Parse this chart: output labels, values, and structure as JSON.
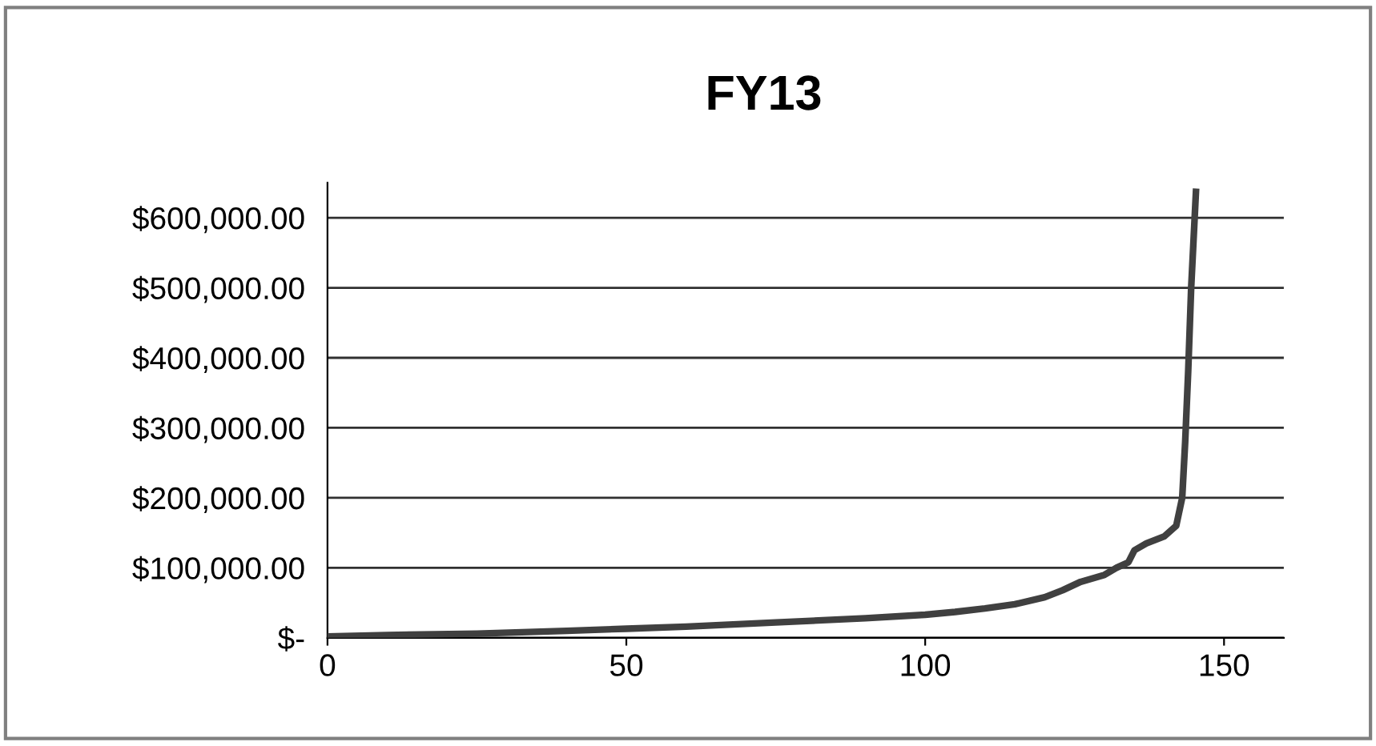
{
  "chart_data": {
    "type": "line",
    "title": "FY13",
    "x": [
      0,
      10,
      25,
      40,
      50,
      60,
      75,
      90,
      100,
      105,
      110,
      115,
      120,
      123,
      126,
      130,
      132,
      134,
      135,
      137,
      140,
      142,
      143,
      143.5,
      144,
      144.5,
      145.3
    ],
    "series": [
      {
        "color": "#404040",
        "values": [
          2000,
          4000,
          6000,
          10000,
          13000,
          16000,
          22000,
          28000,
          33000,
          37000,
          42000,
          48000,
          58000,
          68000,
          80000,
          90000,
          100000,
          108000,
          125000,
          135000,
          145000,
          160000,
          200000,
          280000,
          380000,
          500000,
          637000
        ]
      }
    ],
    "xlim": [
      0,
      160
    ],
    "xticks": [
      0,
      50,
      100,
      150
    ],
    "ylim": [
      0,
      650000
    ],
    "yticks": [
      {
        "value": 0,
        "label": "$-"
      },
      {
        "value": 100000,
        "label": "$100,000.00"
      },
      {
        "value": 200000,
        "label": "$200,000.00"
      },
      {
        "value": 300000,
        "label": "$300,000.00"
      },
      {
        "value": 400000,
        "label": "$400,000.00"
      },
      {
        "value": 500000,
        "label": "$500,000.00"
      },
      {
        "value": 600000,
        "label": "$600,000.00"
      }
    ],
    "grid": "y",
    "marker": "none",
    "line_style": "solid"
  }
}
